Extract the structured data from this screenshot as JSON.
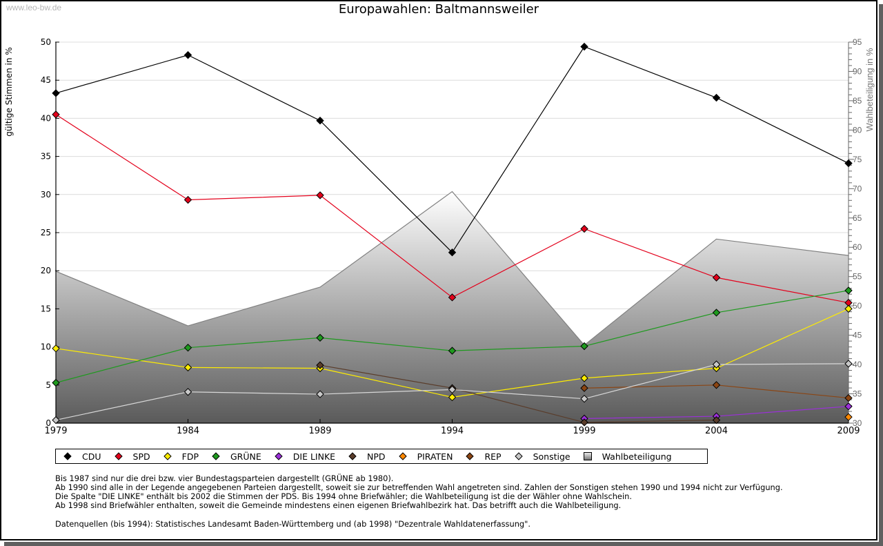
{
  "watermark": "www.leo-bw.de",
  "colors": {
    "CDU": "#000000",
    "SPD": "#e3001b",
    "FDP": "#ffed00",
    "GRÜNE": "#1e9a1e",
    "DIE LINKE": "#9b30d9",
    "NPD": "#5a3d2b",
    "PIRATEN": "#ff8800",
    "REP": "#8b4513",
    "Sonstige": "#c8c8c8",
    "Wahlbeteiligung": "#bdbdbd"
  },
  "chart_data": {
    "type": "line",
    "title": "Europawahlen: Baltmannsweiler",
    "xlabel": "",
    "ylabel": "gültige Stimmen in %",
    "ylabel_right": "Wahlbeteiligung in %",
    "ylim": [
      0,
      50
    ],
    "ylim_right": [
      30,
      95
    ],
    "yticks": [
      "0",
      "5",
      "10",
      "15",
      "20",
      "25",
      "30",
      "35",
      "40",
      "45",
      "50"
    ],
    "yticks_right": [
      "30",
      "35",
      "40",
      "45",
      "50",
      "55",
      "60",
      "65",
      "70",
      "75",
      "80",
      "85",
      "90",
      "95"
    ],
    "x": [
      "1979",
      "1984",
      "1989",
      "1994",
      "1999",
      "2004",
      "2009"
    ],
    "grid": true,
    "legend_position": "bottom",
    "series": [
      {
        "name": "CDU",
        "values": [
          43.3,
          48.3,
          39.7,
          22.4,
          49.4,
          42.7,
          34.1
        ]
      },
      {
        "name": "SPD",
        "values": [
          40.5,
          29.3,
          29.9,
          16.5,
          25.5,
          19.1,
          15.8
        ]
      },
      {
        "name": "FDP",
        "values": [
          9.8,
          7.3,
          7.2,
          3.4,
          5.9,
          7.2,
          15.0
        ]
      },
      {
        "name": "GRÜNE",
        "values": [
          5.3,
          9.9,
          11.2,
          9.5,
          10.1,
          14.5,
          17.4
        ]
      },
      {
        "name": "DIE LINKE",
        "values": [
          null,
          null,
          null,
          null,
          0.6,
          0.9,
          2.2
        ]
      },
      {
        "name": "NPD",
        "values": [
          null,
          null,
          7.6,
          4.6,
          0.1,
          0.4,
          null
        ]
      },
      {
        "name": "PIRATEN",
        "values": [
          null,
          null,
          null,
          null,
          null,
          null,
          0.8
        ]
      },
      {
        "name": "REP",
        "values": [
          null,
          null,
          null,
          null,
          4.6,
          5.0,
          3.3
        ]
      },
      {
        "name": "Sonstige",
        "values": [
          0.4,
          4.1,
          3.8,
          4.4,
          3.2,
          7.7,
          7.8
        ]
      },
      {
        "name": "Wahlbeteiligung",
        "axis": "right",
        "type": "area",
        "values": [
          55.9,
          46.6,
          53.2,
          69.5,
          43.3,
          61.4,
          58.6
        ]
      }
    ]
  },
  "legend": [
    {
      "label": "CDU",
      "marker": "diamond"
    },
    {
      "label": "SPD",
      "marker": "diamond"
    },
    {
      "label": "FDP",
      "marker": "diamond"
    },
    {
      "label": "GRÜNE",
      "marker": "diamond"
    },
    {
      "label": "DIE LINKE",
      "marker": "diamond"
    },
    {
      "label": "NPD",
      "marker": "diamond"
    },
    {
      "label": "PIRATEN",
      "marker": "diamond"
    },
    {
      "label": "REP",
      "marker": "diamond"
    },
    {
      "label": "Sonstige",
      "marker": "diamond"
    },
    {
      "label": "Wahlbeteiligung",
      "marker": "square"
    }
  ],
  "notes": [
    "Bis 1987 sind nur die drei bzw. vier Bundestagsparteien dargestellt (GRÜNE ab 1980).",
    "Ab 1990 sind alle in der Legende angegebenen Parteien dargestellt, soweit sie zur betreffenden Wahl angetreten sind. Zahlen der Sonstigen stehen 1990 und 1994 nicht zur Verfügung.",
    "Die Spalte \"DIE LINKE\" enthält bis 2002 die Stimmen der PDS. Bis 1994 ohne Briefwähler; die Wahlbeteiligung ist die der Wähler ohne Wahlschein.",
    "Ab 1998 sind Briefwähler enthalten, soweit die Gemeinde mindestens einen eigenen Briefwahlbezirk hat. Das betrifft auch die Wahlbeteiligung."
  ],
  "source": "Datenquellen (bis 1994): Statistisches Landesamt Baden-Württemberg und (ab 1998) \"Dezentrale Wahldatenerfassung\"."
}
